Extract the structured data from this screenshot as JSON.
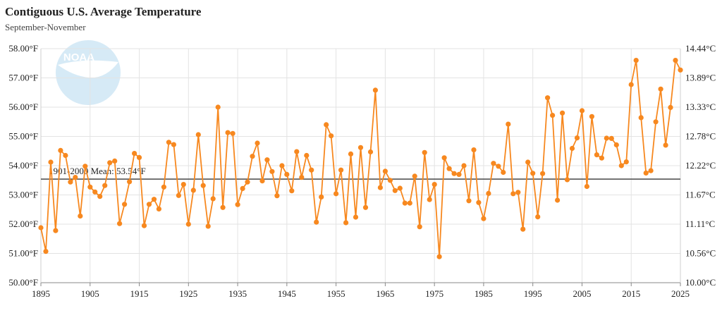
{
  "chart_data": {
    "type": "line",
    "title": "Contiguous U.S. Average Temperature",
    "subtitle": "September-November",
    "logo_text": "NOAA",
    "mean_label": "1901-2000 Mean: 53.54°F",
    "mean_value": 53.54,
    "xlim": [
      1895,
      2025
    ],
    "ylim": [
      50,
      58
    ],
    "x_ticks": [
      1895,
      1905,
      1915,
      1925,
      1935,
      1945,
      1955,
      1965,
      1975,
      1985,
      1995,
      2005,
      2015,
      2025
    ],
    "y_left_ticks": [
      50,
      51,
      52,
      53,
      54,
      55,
      56,
      57,
      58
    ],
    "y_left_labels": [
      "50.00°F",
      "51.00°F",
      "52.00°F",
      "53.00°F",
      "54.00°F",
      "55.00°F",
      "56.00°F",
      "57.00°F",
      "58.00°F"
    ],
    "y_right_labels": [
      "10.00°C",
      "10.56°C",
      "11.11°C",
      "11.67°C",
      "12.22°C",
      "12.78°C",
      "13.33°C",
      "13.89°C",
      "14.44°C"
    ],
    "grid": true,
    "line_color": "#f7881f",
    "mean_color": "#555555",
    "x": [
      1895,
      1896,
      1897,
      1898,
      1899,
      1900,
      1901,
      1902,
      1903,
      1904,
      1905,
      1906,
      1907,
      1908,
      1909,
      1910,
      1911,
      1912,
      1913,
      1914,
      1915,
      1916,
      1917,
      1918,
      1919,
      1920,
      1921,
      1922,
      1923,
      1924,
      1925,
      1926,
      1927,
      1928,
      1929,
      1930,
      1931,
      1932,
      1933,
      1934,
      1935,
      1936,
      1937,
      1938,
      1939,
      1940,
      1941,
      1942,
      1943,
      1944,
      1945,
      1946,
      1947,
      1948,
      1949,
      1950,
      1951,
      1952,
      1953,
      1954,
      1955,
      1956,
      1957,
      1958,
      1959,
      1960,
      1961,
      1962,
      1963,
      1964,
      1965,
      1966,
      1967,
      1968,
      1969,
      1970,
      1971,
      1972,
      1973,
      1974,
      1975,
      1976,
      1977,
      1978,
      1979,
      1980,
      1981,
      1982,
      1983,
      1984,
      1985,
      1986,
      1987,
      1988,
      1989,
      1990,
      1991,
      1992,
      1993,
      1994,
      1995,
      1996,
      1997,
      1998,
      1999,
      2000,
      2001,
      2002,
      2003,
      2004,
      2005,
      2006,
      2007,
      2008,
      2009,
      2010,
      2011,
      2012,
      2013,
      2014,
      2015,
      2016,
      2017,
      2018,
      2019,
      2020,
      2021,
      2022,
      2023,
      2024,
      2025
    ],
    "values": [
      51.88,
      51.07,
      54.12,
      51.78,
      54.52,
      54.35,
      53.44,
      53.6,
      52.28,
      53.98,
      53.27,
      53.1,
      52.95,
      53.32,
      54.1,
      54.16,
      52.02,
      52.68,
      53.45,
      54.42,
      54.28,
      51.95,
      52.68,
      52.85,
      52.52,
      53.27,
      54.8,
      54.72,
      52.98,
      53.36,
      52.0,
      53.16,
      55.06,
      53.32,
      51.93,
      52.87,
      56.0,
      52.57,
      55.13,
      55.1,
      52.67,
      53.22,
      53.44,
      54.32,
      54.77,
      53.48,
      54.2,
      53.8,
      52.97,
      54.0,
      53.7,
      53.14,
      54.48,
      53.6,
      54.35,
      53.85,
      52.07,
      52.93,
      55.4,
      55.02,
      53.04,
      53.85,
      52.05,
      54.4,
      52.24,
      54.62,
      52.57,
      54.47,
      56.58,
      53.25,
      53.81,
      53.5,
      53.15,
      53.23,
      52.72,
      52.72,
      53.64,
      51.91,
      54.45,
      52.84,
      53.36,
      50.89,
      54.27,
      53.9,
      53.73,
      53.7,
      54.0,
      52.8,
      54.54,
      52.74,
      52.19,
      53.05,
      54.08,
      53.98,
      53.77,
      55.42,
      53.04,
      53.09,
      51.83,
      54.12,
      53.74,
      52.25,
      53.73,
      56.32,
      55.72,
      52.82,
      55.8,
      53.52,
      54.59,
      54.95,
      55.88,
      53.29,
      55.68,
      54.37,
      54.26,
      54.94,
      54.93,
      54.71,
      54.0,
      54.13,
      56.77,
      57.6,
      55.64,
      53.75,
      53.83,
      55.5,
      56.62,
      54.7,
      55.99,
      57.6,
      57.27
    ]
  }
}
